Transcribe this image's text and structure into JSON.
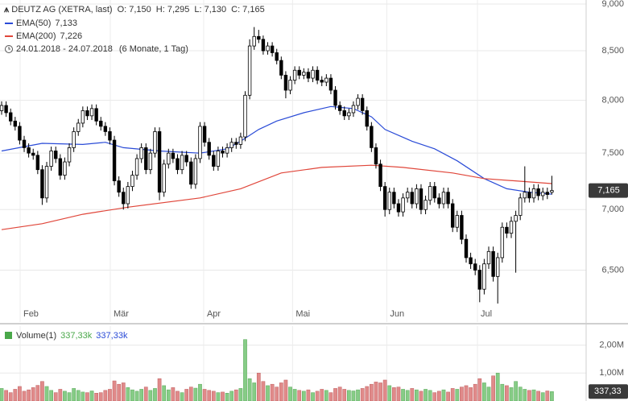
{
  "chart_data": [
    {
      "type": "candlestick",
      "title": "DEUTZ AG (XETRA, last)",
      "ohlc_labels": [
        "O: 7,150",
        "H: 7,295",
        "L: 7,130",
        "C: 7,165"
      ],
      "period": "24.01.2018 - 24.07.2018",
      "period_note": "(6 Monate, 1 Tag)",
      "xlim": [
        -0.36,
        129.6
      ],
      "xticks": [
        {
          "value": 4.1,
          "label": "Feb"
        },
        {
          "value": 24.1,
          "label": "Mär"
        },
        {
          "value": 44.8,
          "label": "Apr"
        },
        {
          "value": 64.5,
          "label": "Mai"
        },
        {
          "value": 85.4,
          "label": "Jun"
        },
        {
          "value": 105.5,
          "label": "Jul"
        }
      ],
      "log_scale": true,
      "ylim": [
        6.1,
        9.0
      ],
      "yticks": [
        {
          "value": 9.0,
          "label": "9,000"
        },
        {
          "value": 8.5,
          "label": "8,500"
        },
        {
          "value": 8.0,
          "label": "8,000"
        },
        {
          "value": 7.5,
          "label": "7,500"
        },
        {
          "value": 7.0,
          "label": "7,000"
        },
        {
          "value": 6.5,
          "label": "6,500"
        }
      ],
      "grid": true,
      "up_color": "#ffffff",
      "down_color": "#000000",
      "open": [
        7.9,
        7.95,
        7.88,
        7.8,
        7.75,
        7.62,
        7.55,
        7.5,
        7.48,
        7.35,
        7.1,
        7.38,
        7.52,
        7.45,
        7.3,
        7.42,
        7.55,
        7.7,
        7.78,
        7.9,
        7.85,
        7.92,
        7.8,
        7.75,
        7.7,
        7.62,
        7.25,
        7.15,
        7.05,
        7.2,
        7.3,
        7.45,
        7.55,
        7.35,
        7.5,
        7.7,
        7.15,
        7.4,
        7.5,
        7.45,
        7.35,
        7.48,
        7.42,
        7.22,
        7.45,
        7.75,
        7.6,
        7.48,
        7.38,
        7.52,
        7.5,
        7.55,
        7.6,
        7.58,
        7.65,
        8.05,
        8.55,
        8.65,
        8.62,
        8.5,
        8.55,
        8.48,
        8.4,
        8.25,
        8.1,
        8.2,
        8.3,
        8.25,
        8.28,
        8.22,
        8.3,
        8.2,
        8.18,
        8.22,
        8.1,
        7.95,
        7.9,
        7.85,
        7.88,
        7.95,
        8.02,
        7.9,
        7.75,
        7.55,
        7.4,
        7.2,
        7.0,
        7.15,
        7.05,
        6.98,
        7.1,
        7.15,
        7.05,
        7.18,
        7.0,
        7.08,
        7.2,
        7.1,
        7.05,
        7.15,
        7.05,
        6.85,
        6.95,
        6.75,
        6.6,
        6.55,
        6.5,
        6.35,
        6.55,
        6.65,
        6.45,
        6.6,
        6.85,
        6.8,
        6.9,
        6.95,
        7.1,
        7.15,
        7.1,
        7.18,
        7.12,
        7.15,
        7.15
      ],
      "high": [
        7.99,
        7.99,
        7.92,
        7.84,
        7.79,
        7.66,
        7.59,
        7.54,
        7.52,
        7.39,
        7.42,
        7.56,
        7.56,
        7.49,
        7.46,
        7.59,
        7.74,
        7.82,
        7.94,
        7.94,
        7.96,
        7.96,
        7.84,
        7.79,
        7.74,
        7.66,
        7.29,
        7.19,
        7.24,
        7.34,
        7.49,
        7.59,
        7.59,
        7.54,
        7.74,
        7.74,
        7.44,
        7.54,
        7.54,
        7.49,
        7.52,
        7.52,
        7.46,
        7.49,
        7.79,
        7.79,
        7.64,
        7.52,
        7.56,
        7.56,
        7.59,
        7.64,
        7.64,
        7.69,
        8.09,
        8.62,
        8.75,
        8.72,
        8.66,
        8.59,
        8.59,
        8.52,
        8.44,
        8.29,
        8.24,
        8.34,
        8.34,
        8.32,
        8.32,
        8.34,
        8.34,
        8.24,
        8.26,
        8.26,
        8.14,
        7.99,
        7.94,
        7.92,
        7.99,
        8.06,
        8.06,
        7.94,
        7.79,
        7.59,
        7.44,
        7.24,
        7.19,
        7.19,
        7.09,
        7.14,
        7.19,
        7.19,
        7.22,
        7.22,
        7.12,
        7.24,
        7.24,
        7.14,
        7.19,
        7.19,
        7.09,
        6.99,
        6.99,
        6.79,
        6.64,
        6.59,
        6.54,
        6.59,
        6.69,
        6.69,
        6.64,
        6.89,
        6.89,
        6.94,
        6.99,
        7.14,
        7.38,
        7.19,
        7.22,
        7.22,
        7.19,
        7.19,
        7.295
      ],
      "low": [
        7.86,
        7.84,
        7.76,
        7.71,
        7.58,
        7.51,
        7.46,
        7.44,
        7.31,
        7.04,
        7.06,
        7.34,
        7.41,
        7.26,
        7.26,
        7.38,
        7.51,
        7.66,
        7.74,
        7.81,
        7.81,
        7.76,
        7.71,
        7.66,
        7.58,
        7.21,
        7.11,
        7.0,
        7.01,
        7.16,
        7.26,
        7.41,
        7.31,
        7.31,
        7.46,
        7.08,
        7.11,
        7.36,
        7.41,
        7.31,
        7.31,
        7.38,
        7.18,
        7.18,
        7.41,
        7.56,
        7.44,
        7.34,
        7.34,
        7.46,
        7.46,
        7.51,
        7.54,
        7.54,
        7.61,
        8.01,
        8.51,
        8.58,
        8.46,
        8.46,
        8.44,
        8.36,
        8.21,
        8.02,
        8.06,
        8.16,
        8.21,
        8.21,
        8.18,
        8.18,
        8.16,
        8.14,
        8.14,
        8.06,
        7.91,
        7.86,
        7.81,
        7.81,
        7.84,
        7.91,
        7.86,
        7.71,
        7.51,
        7.36,
        7.16,
        6.94,
        6.96,
        7.01,
        6.94,
        6.94,
        7.06,
        7.01,
        7.01,
        6.96,
        6.96,
        7.04,
        7.06,
        7.01,
        7.01,
        7.01,
        6.81,
        6.81,
        6.71,
        6.56,
        6.51,
        6.46,
        6.25,
        6.31,
        6.51,
        6.41,
        6.24,
        6.56,
        6.76,
        6.76,
        6.48,
        6.91,
        7.06,
        7.06,
        7.06,
        7.08,
        7.08,
        7.09,
        7.13
      ],
      "close": [
        7.95,
        7.88,
        7.8,
        7.75,
        7.62,
        7.55,
        7.5,
        7.48,
        7.35,
        7.1,
        7.38,
        7.52,
        7.45,
        7.3,
        7.42,
        7.55,
        7.7,
        7.78,
        7.9,
        7.85,
        7.92,
        7.8,
        7.75,
        7.7,
        7.62,
        7.25,
        7.15,
        7.05,
        7.2,
        7.3,
        7.45,
        7.55,
        7.35,
        7.5,
        7.7,
        7.15,
        7.4,
        7.5,
        7.45,
        7.35,
        7.48,
        7.42,
        7.22,
        7.45,
        7.75,
        7.6,
        7.48,
        7.38,
        7.52,
        7.5,
        7.55,
        7.6,
        7.58,
        7.65,
        8.05,
        8.55,
        8.65,
        8.62,
        8.5,
        8.55,
        8.48,
        8.4,
        8.25,
        8.1,
        8.2,
        8.3,
        8.25,
        8.28,
        8.22,
        8.3,
        8.2,
        8.18,
        8.22,
        8.1,
        7.95,
        7.9,
        7.85,
        7.88,
        7.95,
        8.02,
        7.9,
        7.75,
        7.55,
        7.4,
        7.2,
        7.0,
        7.15,
        7.05,
        6.98,
        7.1,
        7.15,
        7.05,
        7.18,
        7.0,
        7.08,
        7.2,
        7.1,
        7.05,
        7.15,
        7.05,
        6.85,
        6.95,
        6.75,
        6.6,
        6.55,
        6.5,
        6.35,
        6.55,
        6.65,
        6.45,
        6.6,
        6.85,
        6.8,
        6.9,
        6.95,
        7.1,
        7.15,
        7.1,
        7.18,
        7.12,
        7.15,
        7.13,
        7.165
      ],
      "series": [
        {
          "name": "EMA(50)",
          "value_label": "7,133",
          "color": "#2a4bd7",
          "x": [
            0,
            9,
            18,
            23,
            27,
            35,
            44,
            50,
            53,
            57,
            61,
            67,
            73,
            78,
            82,
            85,
            91,
            96,
            101,
            107,
            112,
            117,
            122
          ],
          "values": [
            7.52,
            7.59,
            7.58,
            7.6,
            7.55,
            7.52,
            7.5,
            7.54,
            7.61,
            7.72,
            7.8,
            7.88,
            7.94,
            7.92,
            7.84,
            7.72,
            7.61,
            7.54,
            7.43,
            7.27,
            7.18,
            7.15,
            7.133
          ]
        },
        {
          "name": "EMA(200)",
          "value_label": "7,226",
          "color": "#e0463a",
          "x": [
            0,
            9,
            18,
            28,
            44,
            53,
            62,
            71,
            82,
            89,
            100,
            107,
            122
          ],
          "values": [
            6.83,
            6.88,
            6.96,
            7.02,
            7.1,
            7.18,
            7.32,
            7.37,
            7.39,
            7.37,
            7.32,
            7.27,
            7.226
          ]
        }
      ],
      "last_label": "7,165"
    },
    {
      "type": "bar",
      "legend_name": "Volume(1)",
      "legend_values": [
        "337,33k",
        "337,33k"
      ],
      "ylim": [
        0,
        2680000
      ],
      "yticks": [
        {
          "value": 2000000,
          "label": "2,00M"
        },
        {
          "value": 1000000,
          "label": "1,00M"
        }
      ],
      "up_color": "#86cc86",
      "down_color": "#e08a8a",
      "legend_color": "#4aa84a",
      "value_color": "#2a4bd7",
      "values": [
        450000,
        380000,
        300000,
        420000,
        520000,
        350000,
        400000,
        480000,
        560000,
        700000,
        520000,
        380000,
        300000,
        420000,
        350000,
        300000,
        450000,
        380000,
        320000,
        300000,
        360000,
        280000,
        300000,
        380000,
        420000,
        720000,
        600000,
        650000,
        480000,
        400000,
        350000,
        420000,
        500000,
        380000,
        450000,
        800000,
        550000,
        400000,
        480000,
        350000,
        300000,
        420000,
        500000,
        460000,
        600000,
        420000,
        380000,
        350000,
        300000,
        320000,
        280000,
        350000,
        400000,
        450000,
        2200000,
        800000,
        650000,
        1000000,
        700000,
        550000,
        600000,
        500000,
        650000,
        750000,
        500000,
        420000,
        380000,
        350000,
        400000,
        300000,
        350000,
        420000,
        380000,
        300000,
        450000,
        500000,
        420000,
        380000,
        360000,
        400000,
        450000,
        520000,
        600000,
        680000,
        650000,
        750000,
        550000,
        480000,
        500000,
        420000,
        380000,
        450000,
        400000,
        350000,
        420000,
        380000,
        300000,
        350000,
        400000,
        320000,
        450000,
        420000,
        500000,
        550000,
        480000,
        600000,
        800000,
        650000,
        500000,
        900000,
        1000000,
        600000,
        550000,
        480000,
        700000,
        500000,
        420000,
        380000,
        400000,
        350000,
        300000,
        360000,
        337330
      ],
      "last_label": "337,33"
    }
  ]
}
